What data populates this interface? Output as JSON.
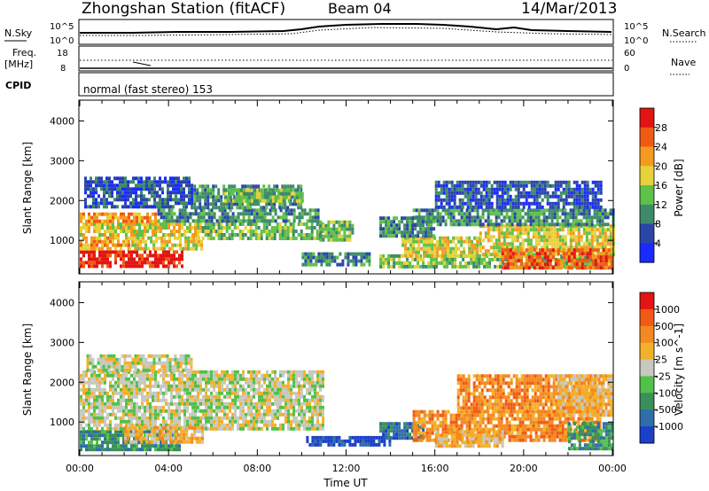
{
  "header": {
    "station": "Zhongshan Station (fitACF)",
    "beam": "Beam 04",
    "date": "14/Mar/2013"
  },
  "aux_panels": {
    "nsky_label": "N.Sky",
    "nsearch_label": "N.Search",
    "freq_label_1": "Freq.",
    "freq_label_2": "[MHz]",
    "nave_label": "Nave",
    "cpid_label": "CPID",
    "cpid_value": "normal (fast stereo) 153",
    "nsky_ticks": [
      "10^5",
      "10^0"
    ],
    "nsearch_ticks": [
      "10^5",
      "10^0"
    ],
    "freq_ticks": [
      "18",
      "8"
    ],
    "nave_ticks": [
      "60",
      "0"
    ]
  },
  "chart_data": [
    {
      "type": "heatmap",
      "panel": "power",
      "ylabel": "Slant Range [km]",
      "xlabel": "",
      "x_range_hours": [
        0,
        24
      ],
      "ylim": [
        180,
        4500
      ],
      "y_ticks": [
        1000,
        2000,
        3000,
        4000
      ],
      "colorbar": {
        "label": "Power [dB]",
        "ticks": [
          "4",
          "8",
          "12",
          "16",
          "20",
          "24",
          "28"
        ],
        "colors": [
          "#1a2bff",
          "#2b45a8",
          "#3e8a6a",
          "#5fc04a",
          "#e6d23a",
          "#f39a1f",
          "#f05a14",
          "#e21414"
        ]
      },
      "regions": [
        {
          "t": [
            0.0,
            4.6
          ],
          "r": [
            350,
            750
          ],
          "level": 7
        },
        {
          "t": [
            0.0,
            2.2
          ],
          "r": [
            750,
            1100
          ],
          "level": 5
        },
        {
          "t": [
            2.2,
            5.5
          ],
          "r": [
            750,
            1100
          ],
          "level": 4
        },
        {
          "t": [
            0.0,
            5.5
          ],
          "r": [
            1100,
            1450
          ],
          "level": 4
        },
        {
          "t": [
            5.5,
            11.0
          ],
          "r": [
            1050,
            1450
          ],
          "level": 3
        },
        {
          "t": [
            0.0,
            3.5
          ],
          "r": [
            1450,
            1700
          ],
          "level": 5
        },
        {
          "t": [
            3.5,
            10.8
          ],
          "r": [
            1450,
            1800
          ],
          "level": 2
        },
        {
          "t": [
            5.0,
            10.0
          ],
          "r": [
            1800,
            2400
          ],
          "level": 2
        },
        {
          "t": [
            6.5,
            10.0
          ],
          "r": [
            2000,
            2300
          ],
          "level": 3
        },
        {
          "t": [
            0.2,
            5.0
          ],
          "r": [
            1800,
            2600
          ],
          "level": 1
        },
        {
          "t": [
            10.8,
            12.3
          ],
          "r": [
            1000,
            1500
          ],
          "level": 3
        },
        {
          "t": [
            10.0,
            13.0
          ],
          "r": [
            400,
            700
          ],
          "level": 2
        },
        {
          "t": [
            13.5,
            24.0
          ],
          "r": [
            350,
            650
          ],
          "level": 3
        },
        {
          "t": [
            14.5,
            18.0
          ],
          "r": [
            650,
            1100
          ],
          "level": 4
        },
        {
          "t": [
            18.0,
            24.0
          ],
          "r": [
            650,
            1400
          ],
          "level": 4
        },
        {
          "t": [
            19.0,
            24.0
          ],
          "r": [
            300,
            800
          ],
          "level": 6
        },
        {
          "t": [
            15.0,
            24.0
          ],
          "r": [
            1400,
            1800
          ],
          "level": 2
        },
        {
          "t": [
            16.0,
            23.5
          ],
          "r": [
            1800,
            2500
          ],
          "level": 1
        },
        {
          "t": [
            13.5,
            16.0
          ],
          "r": [
            1100,
            1600
          ],
          "level": 2
        }
      ]
    },
    {
      "type": "heatmap",
      "panel": "velocity",
      "ylabel": "Slant Range [km]",
      "xlabel": "Time UT",
      "x_range_hours": [
        0,
        24
      ],
      "x_tick_labels": [
        "00:00",
        "04:00",
        "08:00",
        "12:00",
        "16:00",
        "20:00",
        "00:00"
      ],
      "ylim": [
        180,
        4500
      ],
      "y_ticks": [
        1000,
        2000,
        3000,
        4000
      ],
      "colorbar": {
        "label": "Velocity [m s^-1]",
        "ticks": [
          "1000",
          "500",
          "100",
          "25",
          "-25",
          "-100",
          "-500",
          "-1000"
        ],
        "colors": [
          "#1c3fc8",
          "#2f6ea8",
          "#3b8f5a",
          "#52c14a",
          "#c8c8c0",
          "#f3b02a",
          "#f3891f",
          "#f05a14",
          "#e21414"
        ]
      },
      "regions": [
        {
          "t": [
            0.0,
            4.5
          ],
          "r": [
            350,
            800
          ],
          "level": 2
        },
        {
          "t": [
            0.0,
            11.0
          ],
          "r": [
            800,
            2300
          ],
          "level": 4
        },
        {
          "t": [
            0.3,
            5.0
          ],
          "r": [
            2300,
            2700
          ],
          "level": 4
        },
        {
          "t": [
            2.0,
            5.5
          ],
          "r": [
            500,
            900
          ],
          "level": 5
        },
        {
          "t": [
            10.2,
            14.0
          ],
          "r": [
            400,
            650
          ],
          "level": 0
        },
        {
          "t": [
            13.5,
            15.5
          ],
          "r": [
            600,
            1000
          ],
          "level": 1
        },
        {
          "t": [
            15.0,
            23.5
          ],
          "r": [
            500,
            1300
          ],
          "level": 6
        },
        {
          "t": [
            17.0,
            23.5
          ],
          "r": [
            1300,
            2200
          ],
          "level": 6
        },
        {
          "t": [
            16.0,
            19.0
          ],
          "r": [
            400,
            800
          ],
          "level": 5
        },
        {
          "t": [
            22.0,
            24.0
          ],
          "r": [
            300,
            1000
          ],
          "level": 2
        },
        {
          "t": [
            21.5,
            24.0
          ],
          "r": [
            1200,
            2200
          ],
          "level": 5
        }
      ]
    }
  ]
}
